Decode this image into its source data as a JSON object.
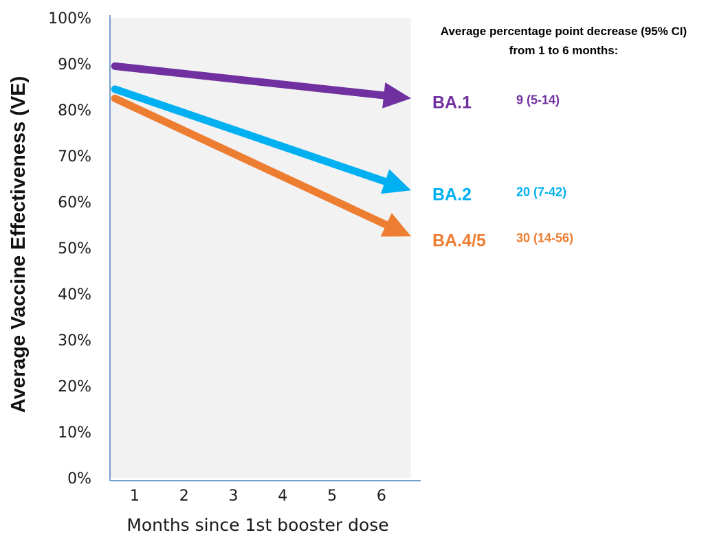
{
  "chart_data": {
    "type": "line",
    "ylabel": "Average Vaccine Effectiveness (VE)",
    "xlabel": "Months since 1st booster dose",
    "x": [
      1,
      2,
      3,
      4,
      5,
      6
    ],
    "xlim": [
      0.5,
      6.6
    ],
    "ylim": [
      0,
      100
    ],
    "y_ticks": [
      "0%",
      "10%",
      "20%",
      "30%",
      "40%",
      "50%",
      "60%",
      "70%",
      "80%",
      "90%",
      "100%"
    ],
    "x_ticks": [
      "1",
      "2",
      "3",
      "4",
      "5",
      "6"
    ],
    "annotation_lines": [
      "Average percentage point decrease (95% CI)",
      "from 1 to 6 months:"
    ],
    "plot_background": "#f2f2f2",
    "axis_color": "#4a7ebb",
    "series": [
      {
        "name": "BA.1",
        "label": "9 (5-14)",
        "color": "#7030a0",
        "x": [
          0.6,
          6.6
        ],
        "y": [
          89.5,
          82.5
        ]
      },
      {
        "name": "BA.2",
        "label": "20 (7-42)",
        "color": "#00b0f0",
        "x": [
          0.6,
          6.6
        ],
        "y": [
          84.5,
          62.5
        ]
      },
      {
        "name": "BA.4/5",
        "label": "30 (14-56)",
        "color": "#ed7d31",
        "x": [
          0.6,
          6.6
        ],
        "y": [
          82.5,
          52.5
        ]
      }
    ]
  }
}
